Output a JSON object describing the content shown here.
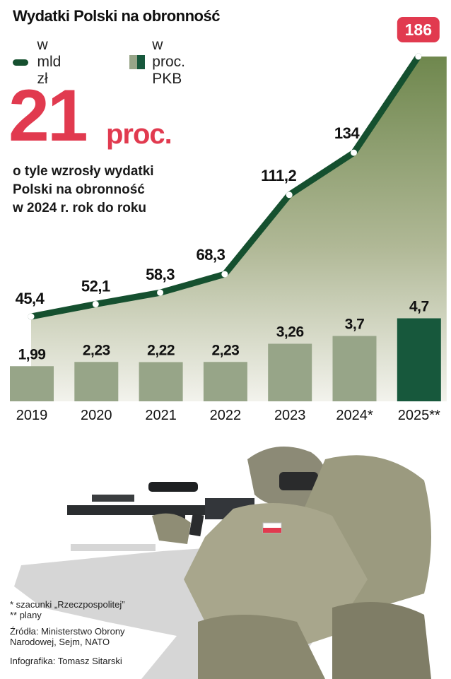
{
  "title": "Wydatki Polski na obronność",
  "legend": {
    "line_label": "w mld zł",
    "bar_label": "w proc. PKB"
  },
  "headline": {
    "number": "21",
    "unit": "proc.",
    "desc_line1": "o tyle wzrosły wydatki",
    "desc_line2": "Polski na obronność",
    "desc_line3": "w 2024 r. rok do roku"
  },
  "colors": {
    "line": "#15502f",
    "bar": "#97a588",
    "bar_highlight": "#17583c",
    "area_top": "#5f7a3a",
    "accent": "#e13a4f"
  },
  "chart_data": {
    "type": "bar+line",
    "categories": [
      "2019",
      "2020",
      "2021",
      "2022",
      "2023",
      "2024*",
      "2025**"
    ],
    "series": [
      {
        "name": "w mld zł",
        "type": "line",
        "values": [
          45.4,
          52.1,
          58.3,
          68.3,
          111.2,
          134,
          186
        ],
        "labels": [
          "45,4",
          "52,1",
          "58,3",
          "68,3",
          "111,2",
          "134",
          "186"
        ]
      },
      {
        "name": "w proc. PKB",
        "type": "bar",
        "values": [
          1.99,
          2.23,
          2.22,
          2.23,
          3.26,
          3.7,
          4.7
        ],
        "labels": [
          "1,99",
          "2,23",
          "2,22",
          "2,23",
          "3,26",
          "3,7",
          "4,7"
        ]
      }
    ],
    "highlight_last": true
  },
  "notes": {
    "line1": " * szacunki „Rzeczpospolitej”",
    "line2": "** plany",
    "sources": "Źródła: Ministerstwo Obrony",
    "sources2": "Narodowej, Sejm, NATO",
    "credit": "Infografika: Tomasz Sitarski"
  }
}
